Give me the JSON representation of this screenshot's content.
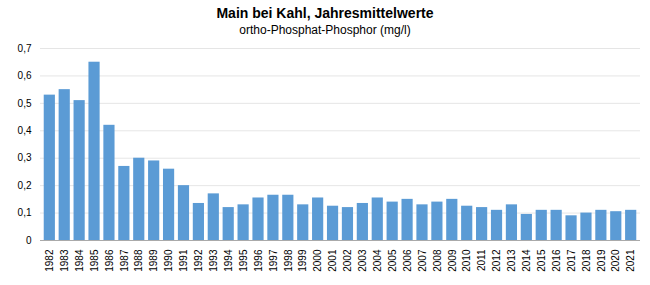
{
  "chart_data": {
    "type": "bar",
    "title": "Main bei Kahl, Jahresmittelwerte",
    "subtitle": "ortho-Phosphat-Phosphor (mg/l)",
    "categories": [
      "1982",
      "1983",
      "1984",
      "1985",
      "1986",
      "1987",
      "1988",
      "1989",
      "1990",
      "1991",
      "1992",
      "1993",
      "1994",
      "1995",
      "1996",
      "1997",
      "1998",
      "1999",
      "2000",
      "2001",
      "2002",
      "2003",
      "2004",
      "2005",
      "2006",
      "2007",
      "2008",
      "2009",
      "2010",
      "2011",
      "2012",
      "2013",
      "2014",
      "2015",
      "2016",
      "2017",
      "2018",
      "2019",
      "2020",
      "2021"
    ],
    "values": [
      0.53,
      0.55,
      0.51,
      0.65,
      0.42,
      0.27,
      0.3,
      0.29,
      0.26,
      0.2,
      0.135,
      0.17,
      0.12,
      0.13,
      0.155,
      0.165,
      0.165,
      0.13,
      0.155,
      0.125,
      0.12,
      0.135,
      0.155,
      0.14,
      0.15,
      0.13,
      0.14,
      0.15,
      0.125,
      0.12,
      0.11,
      0.13,
      0.095,
      0.11,
      0.11,
      0.09,
      0.1,
      0.11,
      0.105,
      0.11
    ],
    "color": "#5b9bd5",
    "ylim": [
      0,
      0.7
    ],
    "yticks": [
      0,
      {
        "value": 0.1,
        "label": "0,1"
      },
      {
        "value": 0.2,
        "label": "0,2"
      },
      {
        "value": 0.3,
        "label": "0,3"
      },
      {
        "value": 0.4,
        "label": "0,4"
      },
      {
        "value": 0.5,
        "label": "0,5"
      },
      {
        "value": 0.6,
        "label": "0,6"
      },
      {
        "value": 0.7,
        "label": "0,7"
      }
    ],
    "grid": true
  }
}
